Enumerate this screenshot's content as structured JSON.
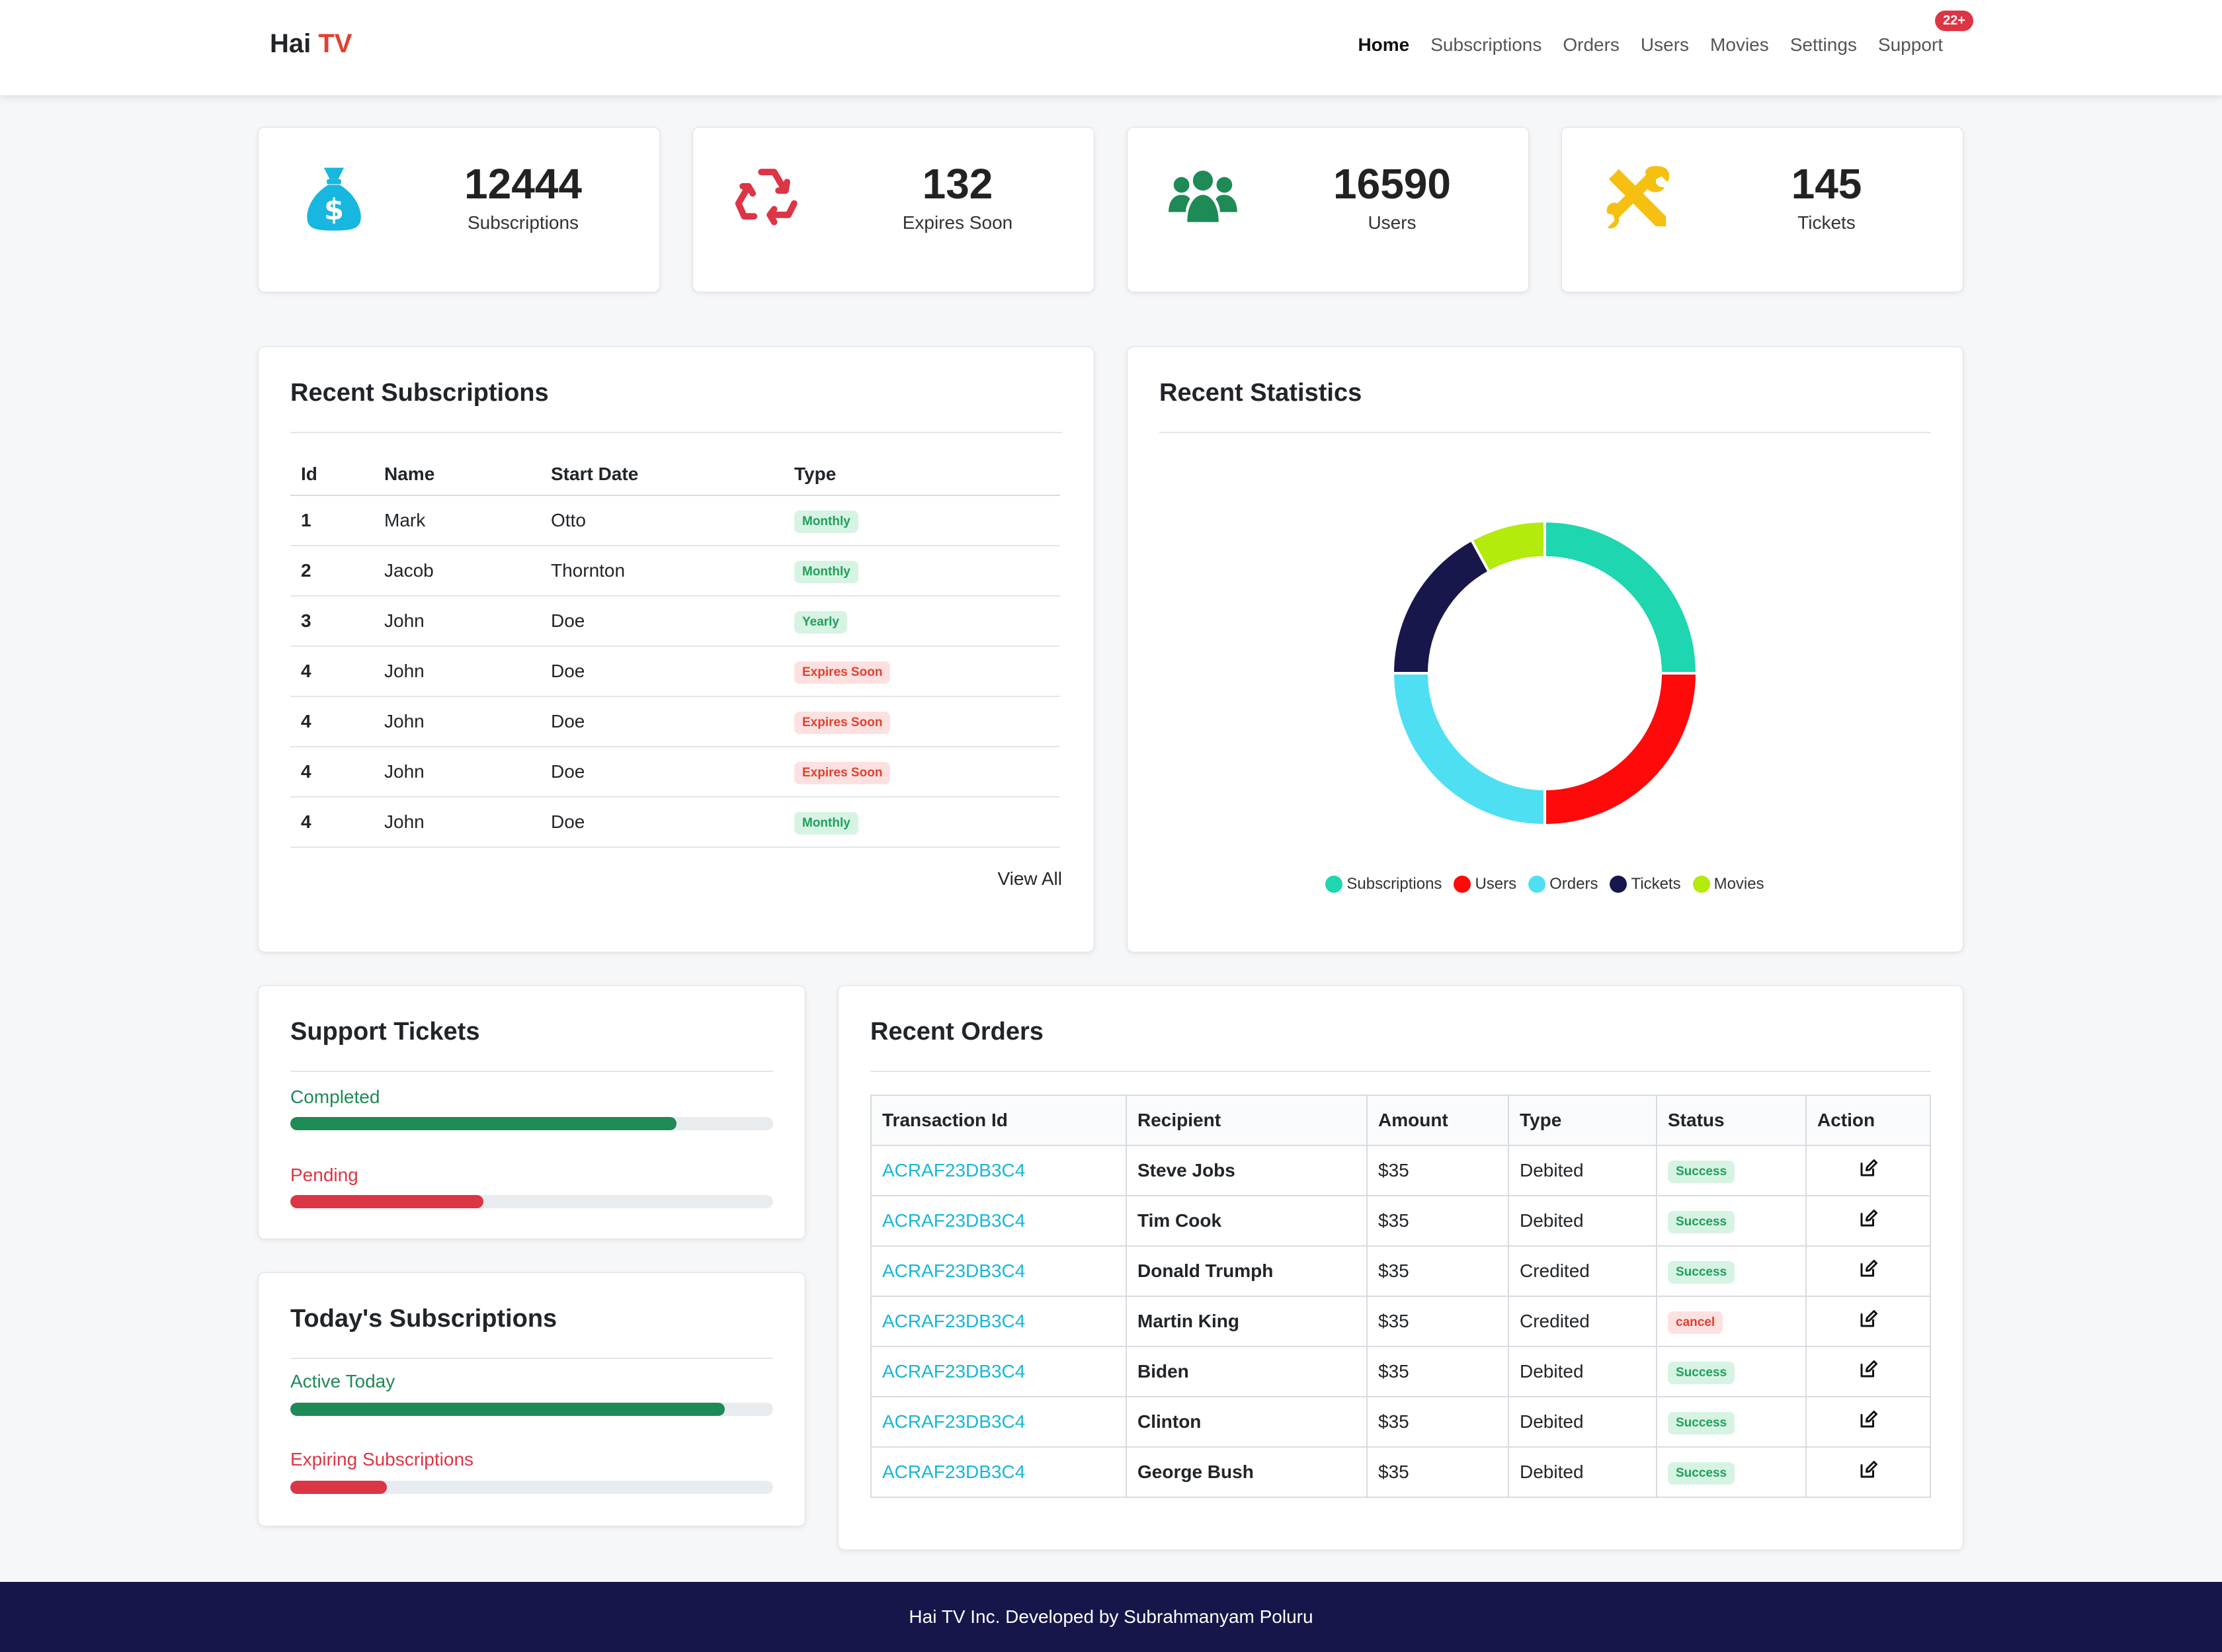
{
  "brand": {
    "name": "Hai",
    "accent": "TV",
    "accent_color": "#e0412f"
  },
  "nav": {
    "items": [
      {
        "label": "Home",
        "active": true
      },
      {
        "label": "Subscriptions"
      },
      {
        "label": "Orders"
      },
      {
        "label": "Users"
      },
      {
        "label": "Movies"
      },
      {
        "label": "Settings"
      },
      {
        "label": "Support",
        "badge": "22+"
      }
    ]
  },
  "stats": [
    {
      "value": "12444",
      "label": "Subscriptions",
      "icon": "money-bag-icon",
      "color": "#17b7e0"
    },
    {
      "value": "132",
      "label": "Expires Soon",
      "icon": "recycle-icon",
      "color": "#dc3545"
    },
    {
      "value": "16590",
      "label": "Users",
      "icon": "users-icon",
      "color": "#1e8a55"
    },
    {
      "value": "145",
      "label": "Tickets",
      "icon": "tools-icon",
      "color": "#f5c012"
    }
  ],
  "recent_subscriptions": {
    "title": "Recent Subscriptions",
    "headers": [
      "Id",
      "Name",
      "Start Date",
      "Type"
    ],
    "rows": [
      {
        "id": "1",
        "name": "Mark",
        "start": "Otto",
        "type": "Monthly",
        "status": "green"
      },
      {
        "id": "2",
        "name": "Jacob",
        "start": "Thornton",
        "type": "Monthly",
        "status": "green"
      },
      {
        "id": "3",
        "name": "John",
        "start": "Doe",
        "type": "Yearly",
        "status": "green"
      },
      {
        "id": "4",
        "name": "John",
        "start": "Doe",
        "type": "Expires Soon",
        "status": "red"
      },
      {
        "id": "4",
        "name": "John",
        "start": "Doe",
        "type": "Expires Soon",
        "status": "red"
      },
      {
        "id": "4",
        "name": "John",
        "start": "Doe",
        "type": "Expires Soon",
        "status": "red"
      },
      {
        "id": "4",
        "name": "John",
        "start": "Doe",
        "type": "Monthly",
        "status": "green"
      }
    ],
    "view_all": "View All"
  },
  "recent_statistics": {
    "title": "Recent Statistics"
  },
  "chart_data": {
    "type": "pie",
    "style": "doughnut",
    "title": "Recent Statistics",
    "categories": [
      "Subscriptions",
      "Users",
      "Orders",
      "Tickets",
      "Movies"
    ],
    "values": [
      25,
      25,
      25,
      17,
      8
    ],
    "colors": [
      "#1ed6b0",
      "#ff0a0a",
      "#4ee0f2",
      "#17174c",
      "#b4ea0c"
    ],
    "legend": "bottom"
  },
  "support_tickets": {
    "title": "Support Tickets",
    "bars": [
      {
        "label": "Completed",
        "value": 80,
        "color": "#1e8a55"
      },
      {
        "label": "Pending",
        "value": 40,
        "color": "#dc3545"
      }
    ]
  },
  "todays_subscriptions": {
    "title": "Today's Subscriptions",
    "bars": [
      {
        "label": "Active Today",
        "value": 90,
        "color": "#1e8a55"
      },
      {
        "label": "Expiring Subscriptions",
        "value": 20,
        "color": "#dc3545"
      }
    ]
  },
  "recent_orders": {
    "title": "Recent Orders",
    "headers": [
      "Transaction Id",
      "Recipient",
      "Amount",
      "Type",
      "Status",
      "Action"
    ],
    "rows": [
      {
        "txn": "ACRAF23DB3C4",
        "recipient": "Steve Jobs",
        "amount": "$35",
        "type": "Debited",
        "status": "Success",
        "status_color": "green"
      },
      {
        "txn": "ACRAF23DB3C4",
        "recipient": "Tim Cook",
        "amount": "$35",
        "type": "Debited",
        "status": "Success",
        "status_color": "green"
      },
      {
        "txn": "ACRAF23DB3C4",
        "recipient": "Donald Trumph",
        "amount": "$35",
        "type": "Credited",
        "status": "Success",
        "status_color": "green"
      },
      {
        "txn": "ACRAF23DB3C4",
        "recipient": "Martin King",
        "amount": "$35",
        "type": "Credited",
        "status": "cancel",
        "status_color": "red"
      },
      {
        "txn": "ACRAF23DB3C4",
        "recipient": "Biden",
        "amount": "$35",
        "type": "Debited",
        "status": "Success",
        "status_color": "green"
      },
      {
        "txn": "ACRAF23DB3C4",
        "recipient": "Clinton",
        "amount": "$35",
        "type": "Debited",
        "status": "Success",
        "status_color": "green"
      },
      {
        "txn": "ACRAF23DB3C4",
        "recipient": "George Bush",
        "amount": "$35",
        "type": "Debited",
        "status": "Success",
        "status_color": "green"
      }
    ],
    "action_icon": "edit-icon"
  },
  "footer": {
    "text": "Hai TV Inc. Developed by Subrahmanyam Poluru"
  }
}
